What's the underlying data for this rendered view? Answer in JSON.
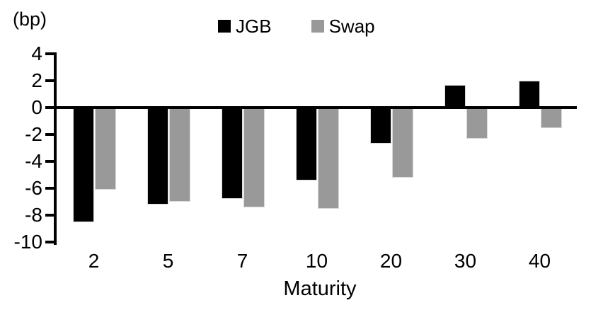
{
  "chart_data": {
    "type": "bar",
    "title": "",
    "unit_label": "(bp)",
    "xlabel": "Maturity",
    "ylabel": "",
    "categories": [
      "2",
      "5",
      "7",
      "10",
      "20",
      "30",
      "40"
    ],
    "series": [
      {
        "name": "JGB",
        "color": "#000000",
        "values": [
          -8.5,
          -7.2,
          -6.8,
          -5.4,
          -2.7,
          1.7,
          2.0
        ]
      },
      {
        "name": "Swap",
        "color": "#999999",
        "values": [
          -6.1,
          -7.0,
          -7.4,
          -7.5,
          -5.2,
          -2.3,
          -1.5
        ]
      }
    ],
    "ylim": [
      -10,
      4
    ],
    "yticks": [
      4,
      2,
      0,
      -2,
      -4,
      -6,
      -8,
      -10
    ],
    "ytick_step": 2,
    "legend_position": "top-center",
    "grid": false,
    "zero_baseline": true
  }
}
